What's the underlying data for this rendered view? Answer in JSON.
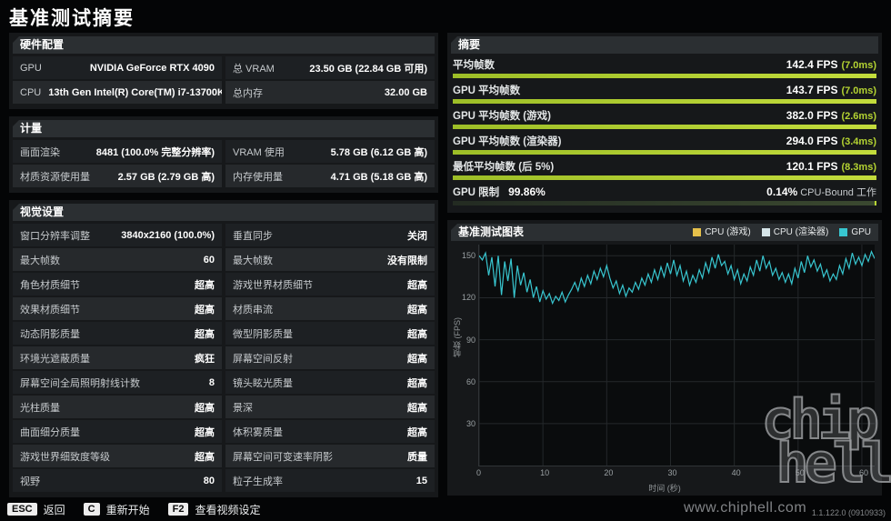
{
  "page_title": "基准测试摘要",
  "hardware": {
    "title": "硬件配置",
    "rows": [
      {
        "label1": "GPU",
        "value1": "NVIDIA GeForce RTX 4090",
        "label2": "总 VRAM",
        "value2": "23.50 GB (22.84 GB 可用)"
      },
      {
        "label1": "CPU",
        "value1": "13th Gen Intel(R) Core(TM) i7-13700KF",
        "label2": "总内存",
        "value2": "32.00 GB"
      }
    ]
  },
  "metrics": {
    "title": "计量",
    "rows": [
      {
        "label1": "画面渲染",
        "value1": "8481 (100.0% 完整分辨率)",
        "label2": "VRAM 使用",
        "value2": "5.78 GB (6.12 GB 高)"
      },
      {
        "label1": "材质资源使用量",
        "value1": "2.57 GB (2.79 GB 高)",
        "label2": "内存使用量",
        "value2": "4.71 GB (5.18 GB 高)"
      }
    ]
  },
  "visual_settings": {
    "title": "视觉设置",
    "rows": [
      {
        "label1": "窗口分辨率调整",
        "value1": "3840x2160 (100.0%)",
        "label2": "垂直同步",
        "value2": "关闭"
      },
      {
        "label1": "最大帧数",
        "value1": "60",
        "label2": "最大帧数",
        "value2": "没有限制"
      },
      {
        "label1": "角色材质细节",
        "value1": "超高",
        "label2": "游戏世界材质细节",
        "value2": "超高"
      },
      {
        "label1": "效果材质细节",
        "value1": "超高",
        "label2": "材质串流",
        "value2": "超高"
      },
      {
        "label1": "动态阴影质量",
        "value1": "超高",
        "label2": "微型阴影质量",
        "value2": "超高"
      },
      {
        "label1": "环境光遮蔽质量",
        "value1": "疯狂",
        "label2": "屏幕空间反射",
        "value2": "超高"
      },
      {
        "label1": "屏幕空间全局照明射线计数",
        "value1": "8",
        "label2": "镜头眩光质量",
        "value2": "超高"
      },
      {
        "label1": "光柱质量",
        "value1": "超高",
        "label2": "景深",
        "value2": "超高"
      },
      {
        "label1": "曲面细分质量",
        "value1": "超高",
        "label2": "体积雾质量",
        "value2": "超高"
      },
      {
        "label1": "游戏世界细致度等级",
        "value1": "超高",
        "label2": "屏幕空间可变速率阴影",
        "value2": "质量"
      },
      {
        "label1": "视野",
        "value1": "80",
        "label2": "粒子生成率",
        "value2": "15"
      }
    ]
  },
  "summary": {
    "title": "摘要",
    "items": [
      {
        "label": "平均帧数",
        "value": "142.4 FPS",
        "ms": "(7.0ms)",
        "pct": 100
      },
      {
        "label": "GPU 平均帧数",
        "value": "143.7 FPS",
        "ms": "(7.0ms)",
        "pct": 100
      },
      {
        "label": "GPU 平均帧数 (游戏)",
        "value": "382.0 FPS",
        "ms": "(2.6ms)",
        "pct": 100
      },
      {
        "label": "GPU 平均帧数 (渲染器)",
        "value": "294.0 FPS",
        "ms": "(3.4ms)",
        "pct": 100
      },
      {
        "label": "最低平均帧数 (后 5%)",
        "value": "120.1 FPS",
        "ms": "(8.3ms)",
        "pct": 100
      }
    ],
    "gpu_limit": {
      "label": "GPU 限制",
      "value": "99.86%",
      "pct": 99.86,
      "right_value": "0.14%",
      "right_label": "CPU-Bound 工作"
    }
  },
  "chart": {
    "title": "基准测试图表",
    "type": "line",
    "legend": [
      {
        "label": "CPU (游戏)",
        "color": "#e5c04a"
      },
      {
        "label": "CPU (渲染器)",
        "color": "#d5e4e8"
      },
      {
        "label": "GPU",
        "color": "#38c6d0"
      }
    ],
    "x_label": "时间 (秒)",
    "y_label": "帧数 (FPS)",
    "x_ticks": [
      0,
      10,
      20,
      30,
      40,
      50,
      60
    ],
    "y_ticks": [
      30,
      60,
      90,
      120,
      150
    ],
    "xlim": [
      0,
      62
    ],
    "ylim": [
      0,
      158
    ],
    "series": [
      {
        "name": "GPU",
        "color": "#38c6d0",
        "x_start": 0,
        "x_step": 0.5,
        "values": [
          150,
          147,
          152,
          136,
          149,
          128,
          150,
          122,
          146,
          132,
          148,
          120,
          143,
          129,
          138,
          124,
          133,
          120,
          128,
          117,
          125,
          119,
          123,
          116,
          121,
          118,
          124,
          117,
          122,
          126,
          131,
          125,
          134,
          128,
          136,
          130,
          139,
          133,
          141,
          135,
          143,
          134,
          127,
          132,
          123,
          129,
          121,
          127,
          124,
          131,
          126,
          134,
          129,
          137,
          131,
          140,
          133,
          142,
          135,
          145,
          137,
          147,
          136,
          143,
          132,
          139,
          129,
          136,
          131,
          140,
          134,
          145,
          138,
          149,
          141,
          151,
          143,
          146,
          137,
          143,
          133,
          140,
          130,
          137,
          132,
          142,
          136,
          147,
          139,
          150,
          141,
          146,
          136,
          141,
          133,
          138,
          131,
          137,
          130,
          141,
          134,
          146,
          138,
          150,
          142,
          147,
          139,
          144,
          135,
          140,
          132,
          137,
          133,
          143,
          137,
          148,
          141,
          152,
          144,
          149,
          143,
          151,
          146,
          153,
          148
        ]
      }
    ]
  },
  "bottom_bar": {
    "hints": [
      {
        "key": "ESC",
        "label": "返回"
      },
      {
        "key": "C",
        "label": "重新开始"
      },
      {
        "key": "F2",
        "label": "查看视频设定"
      }
    ]
  },
  "watermark": {
    "url": "www.chiphell.com",
    "logo_line1": "chip",
    "logo_line2": "hell"
  },
  "version": "1.1.122.0 (0910933)"
}
